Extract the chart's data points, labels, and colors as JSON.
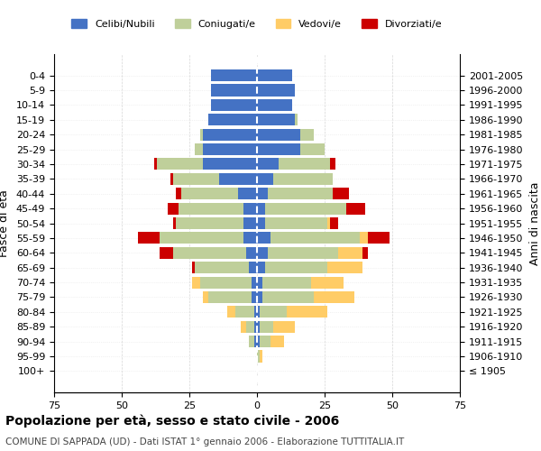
{
  "age_groups": [
    "100+",
    "95-99",
    "90-94",
    "85-89",
    "80-84",
    "75-79",
    "70-74",
    "65-69",
    "60-64",
    "55-59",
    "50-54",
    "45-49",
    "40-44",
    "35-39",
    "30-34",
    "25-29",
    "20-24",
    "15-19",
    "10-14",
    "5-9",
    "0-4"
  ],
  "birth_years": [
    "≤ 1905",
    "1906-1910",
    "1911-1915",
    "1916-1920",
    "1921-1925",
    "1926-1930",
    "1931-1935",
    "1936-1940",
    "1941-1945",
    "1946-1950",
    "1951-1955",
    "1956-1960",
    "1961-1965",
    "1966-1970",
    "1971-1975",
    "1976-1980",
    "1981-1985",
    "1986-1990",
    "1991-1995",
    "1996-2000",
    "2001-2005"
  ],
  "males": {
    "celibi": [
      0,
      0,
      1,
      1,
      1,
      2,
      2,
      3,
      4,
      5,
      5,
      5,
      7,
      14,
      20,
      20,
      20,
      18,
      17,
      17,
      17
    ],
    "coniugati": [
      0,
      0,
      2,
      3,
      7,
      16,
      19,
      20,
      27,
      31,
      25,
      24,
      21,
      17,
      17,
      3,
      1,
      0,
      0,
      0,
      0
    ],
    "vedovi": [
      0,
      0,
      0,
      2,
      3,
      2,
      3,
      0,
      0,
      0,
      0,
      0,
      0,
      0,
      0,
      0,
      0,
      0,
      0,
      0,
      0
    ],
    "divorziati": [
      0,
      0,
      0,
      0,
      0,
      0,
      0,
      1,
      5,
      8,
      1,
      4,
      2,
      1,
      1,
      0,
      0,
      0,
      0,
      0,
      0
    ]
  },
  "females": {
    "nubili": [
      0,
      0,
      1,
      1,
      1,
      2,
      2,
      3,
      4,
      5,
      3,
      3,
      4,
      6,
      8,
      16,
      16,
      14,
      13,
      14,
      13
    ],
    "coniugate": [
      0,
      1,
      4,
      5,
      10,
      19,
      18,
      23,
      26,
      33,
      23,
      30,
      24,
      22,
      19,
      9,
      5,
      1,
      0,
      0,
      0
    ],
    "vedove": [
      0,
      1,
      5,
      8,
      15,
      15,
      12,
      13,
      9,
      3,
      1,
      0,
      0,
      0,
      0,
      0,
      0,
      0,
      0,
      0,
      0
    ],
    "divorziate": [
      0,
      0,
      0,
      0,
      0,
      0,
      0,
      0,
      2,
      8,
      3,
      7,
      6,
      0,
      2,
      0,
      0,
      0,
      0,
      0,
      0
    ]
  },
  "colors": {
    "celibi_nubili": "#4472C4",
    "coniugati_e": "#BFCF9A",
    "vedovi_e": "#FFCC66",
    "divorziati_e": "#CC0000"
  },
  "title": "Popolazione per età, sesso e stato civile - 2006",
  "subtitle": "COMUNE DI SAPPADA (UD) - Dati ISTAT 1° gennaio 2006 - Elaborazione TUTTITALIA.IT",
  "ylabel": "Fasce di età",
  "right_ylabel": "Anni di nascita",
  "xlim": 75,
  "legend_labels": [
    "Celibi/Nubili",
    "Coniugati/e",
    "Vedovi/e",
    "Divorziati/e"
  ],
  "background_color": "#ffffff",
  "grid_color": "#cccccc"
}
